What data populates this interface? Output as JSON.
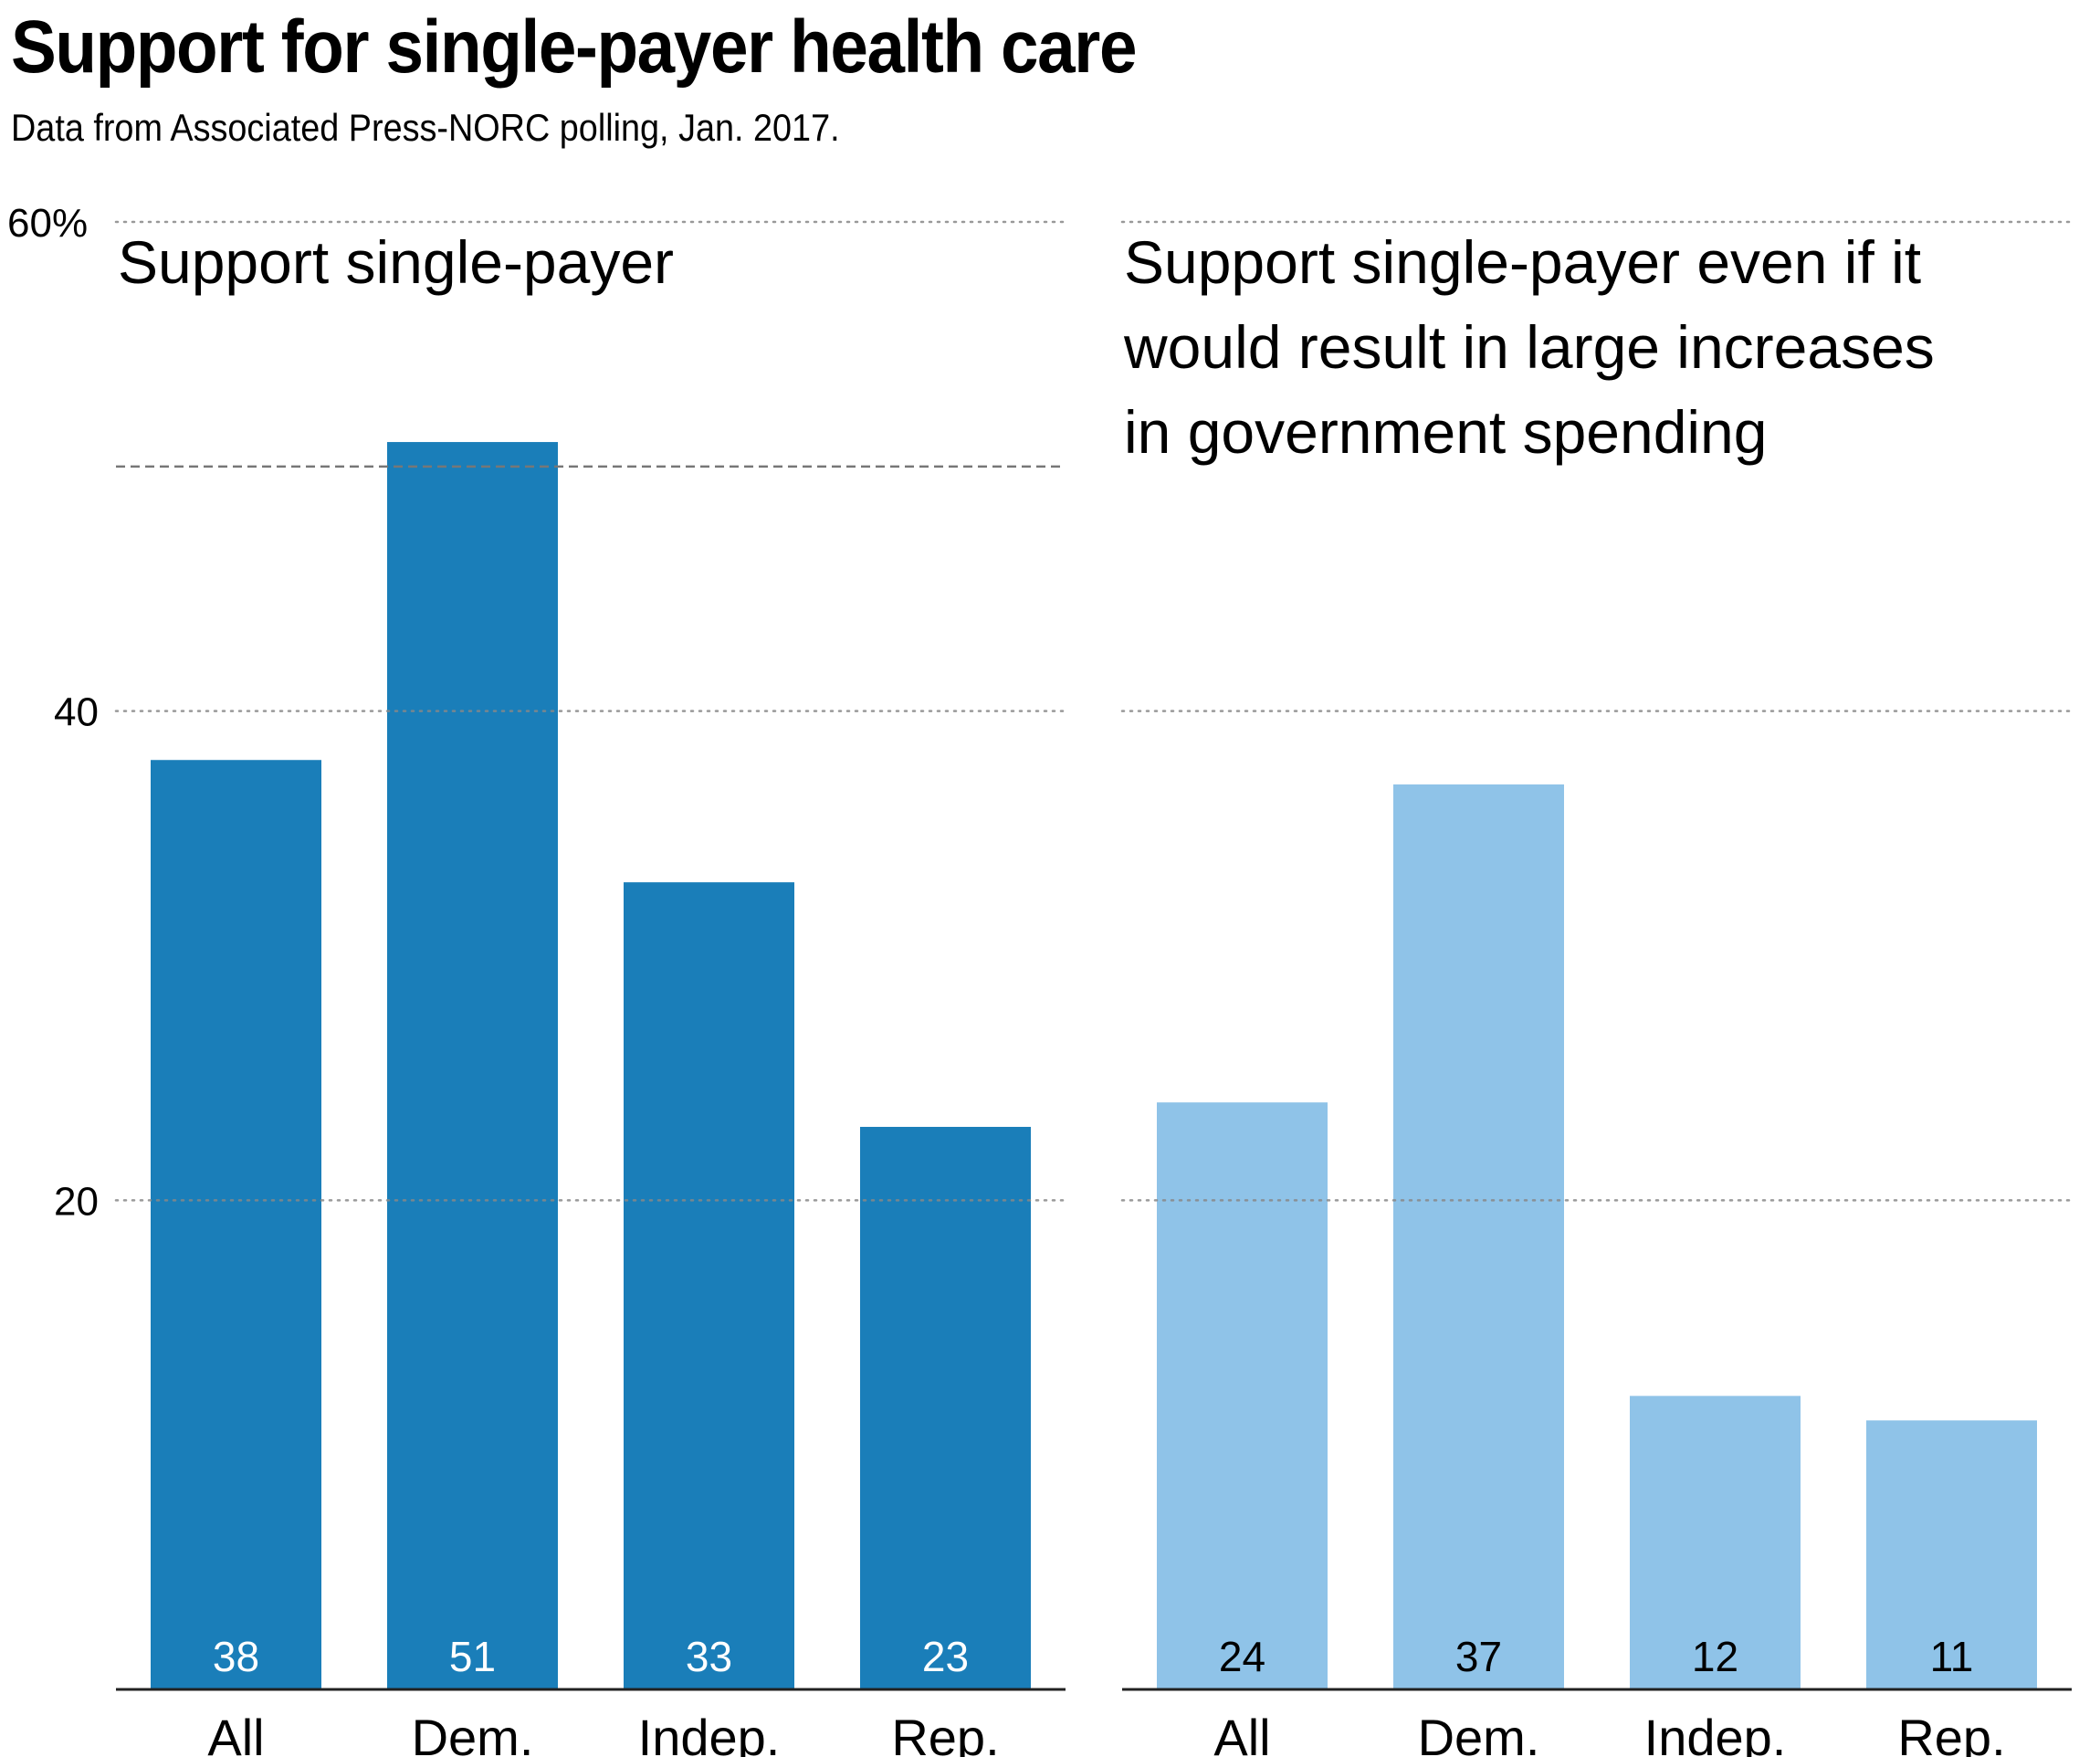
{
  "header": {
    "title": "Support for single-payer health care",
    "subtitle": "Data from Associated Press-NORC polling, Jan. 2017."
  },
  "colors": {
    "dark_blue": "#1a7eb9",
    "light_blue": "#8fc3e8",
    "gridline": "#888888",
    "baseline": "#222222",
    "reference_line": "#777777"
  },
  "chart_data": [
    {
      "type": "bar",
      "title": "Support single-payer",
      "title_lines": [
        "Support single-payer"
      ],
      "categories": [
        "All",
        "Dem.",
        "Indep.",
        "Rep."
      ],
      "values": [
        38,
        51,
        33,
        23
      ],
      "unit": "%",
      "ylim": [
        0,
        60
      ],
      "yticks": [
        20,
        40,
        60
      ],
      "ytick_labels": [
        "20",
        "40",
        "60%"
      ],
      "grid": true,
      "reference_line": {
        "value": 50,
        "style": "dashed",
        "meaning": "majority"
      },
      "bar_color": "#1a7eb9",
      "value_label_color": "#ffffff",
      "xlabel": "",
      "ylabel": ""
    },
    {
      "type": "bar",
      "title": "Support single-payer even if it would result in large increases in government spending",
      "title_lines": [
        "Support single-payer even if it",
        "would result in large increases",
        "in government spending"
      ],
      "categories": [
        "All",
        "Dem.",
        "Indep.",
        "Rep."
      ],
      "values": [
        24,
        37,
        12,
        11
      ],
      "unit": "%",
      "ylim": [
        0,
        60
      ],
      "yticks": [
        20,
        40,
        60
      ],
      "grid": true,
      "bar_color": "#8fc3e8",
      "value_label_color": "#000000",
      "xlabel": "",
      "ylabel": ""
    }
  ]
}
